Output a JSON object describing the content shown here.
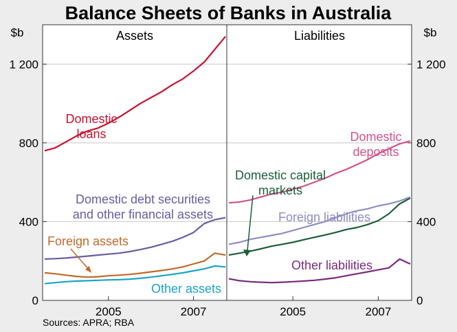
{
  "chart_data": {
    "type": "line",
    "title": "Balance Sheets of Banks in Australia",
    "source": "Sources: APRA; RBA",
    "y_unit_left": "$b",
    "y_unit_right": "$b",
    "ylim": [
      0,
      1400
    ],
    "y_ticks": [
      0,
      400,
      800,
      1200
    ],
    "y_tick_labels": [
      "0",
      "400",
      "800",
      "1 200"
    ],
    "x_ticks": [
      2005,
      2007
    ],
    "x_tick_labels": [
      "2005",
      "2007"
    ],
    "xlim": [
      2003.5,
      2007.75
    ],
    "grid": true,
    "panels": [
      {
        "label": "Assets",
        "series": [
          {
            "name": "Domestic loans",
            "label_lines": [
              "Domestic",
              "loans"
            ],
            "color": "#c8102e",
            "x": [
              2003.5,
              2003.75,
              2004.0,
              2004.25,
              2004.5,
              2004.75,
              2005.0,
              2005.25,
              2005.5,
              2005.75,
              2006.0,
              2006.25,
              2006.5,
              2006.75,
              2007.0,
              2007.25,
              2007.5,
              2007.75
            ],
            "values": [
              760,
              775,
              805,
              835,
              860,
              875,
              900,
              930,
              965,
              1000,
              1030,
              1060,
              1095,
              1125,
              1165,
              1210,
              1275,
              1340
            ]
          },
          {
            "name": "Domestic debt securities and other financial assets",
            "label_lines": [
              "Domestic debt securities",
              "and other financial assets"
            ],
            "color": "#6a5ba3",
            "x": [
              2003.5,
              2003.75,
              2004.0,
              2004.25,
              2004.5,
              2004.75,
              2005.0,
              2005.25,
              2005.5,
              2005.75,
              2006.0,
              2006.25,
              2006.5,
              2006.75,
              2007.0,
              2007.25,
              2007.5,
              2007.75
            ],
            "values": [
              210,
              212,
              215,
              220,
              225,
              230,
              235,
              240,
              248,
              258,
              270,
              285,
              300,
              320,
              345,
              390,
              410,
              420
            ]
          },
          {
            "name": "Foreign assets",
            "label_lines": [
              "Foreign assets"
            ],
            "color": "#c0692a",
            "x": [
              2003.5,
              2003.75,
              2004.0,
              2004.25,
              2004.5,
              2004.75,
              2005.0,
              2005.25,
              2005.5,
              2005.75,
              2006.0,
              2006.25,
              2006.5,
              2006.75,
              2007.0,
              2007.25,
              2007.5,
              2007.75
            ],
            "values": [
              140,
              135,
              128,
              122,
              118,
              120,
              125,
              128,
              132,
              138,
              145,
              152,
              160,
              170,
              185,
              200,
              240,
              230
            ]
          },
          {
            "name": "Other assets",
            "label_lines": [
              "Other assets"
            ],
            "color": "#1aa3c8",
            "x": [
              2003.5,
              2003.75,
              2004.0,
              2004.25,
              2004.5,
              2004.75,
              2005.0,
              2005.25,
              2005.5,
              2005.75,
              2006.0,
              2006.25,
              2006.5,
              2006.75,
              2007.0,
              2007.25,
              2007.5,
              2007.75
            ],
            "values": [
              85,
              90,
              95,
              98,
              100,
              102,
              104,
              105,
              108,
              112,
              118,
              125,
              132,
              140,
              150,
              160,
              175,
              170
            ]
          }
        ]
      },
      {
        "label": "Liabilities",
        "series": [
          {
            "name": "Domestic deposits",
            "label_lines": [
              "Domestic",
              "deposits"
            ],
            "color": "#d6508a",
            "x": [
              2003.5,
              2003.75,
              2004.0,
              2004.25,
              2004.5,
              2004.75,
              2005.0,
              2005.25,
              2005.5,
              2005.75,
              2006.0,
              2006.25,
              2006.5,
              2006.75,
              2007.0,
              2007.25,
              2007.5,
              2007.75
            ],
            "values": [
              495,
              500,
              510,
              525,
              540,
              550,
              565,
              580,
              600,
              620,
              645,
              665,
              690,
              715,
              745,
              770,
              795,
              810
            ]
          },
          {
            "name": "Domestic capital markets",
            "label_lines": [
              "Domestic capital",
              "markets"
            ],
            "color": "#1b5e38",
            "x": [
              2003.5,
              2003.75,
              2004.0,
              2004.25,
              2004.5,
              2004.75,
              2005.0,
              2005.25,
              2005.5,
              2005.75,
              2006.0,
              2006.25,
              2006.5,
              2006.75,
              2007.0,
              2007.25,
              2007.5,
              2007.75
            ],
            "values": [
              230,
              240,
              250,
              262,
              275,
              285,
              295,
              308,
              320,
              332,
              345,
              360,
              370,
              385,
              405,
              440,
              490,
              520
            ]
          },
          {
            "name": "Foreign liabilities",
            "label_lines": [
              "Foreign liabilities"
            ],
            "color": "#8e8dc3",
            "x": [
              2003.5,
              2003.75,
              2004.0,
              2004.25,
              2004.5,
              2004.75,
              2005.0,
              2005.25,
              2005.5,
              2005.75,
              2006.0,
              2006.25,
              2006.5,
              2006.75,
              2007.0,
              2007.25,
              2007.5,
              2007.75
            ],
            "values": [
              285,
              295,
              310,
              320,
              330,
              340,
              355,
              370,
              385,
              400,
              420,
              440,
              455,
              465,
              480,
              490,
              505,
              525
            ]
          },
          {
            "name": "Other liabilities",
            "label_lines": [
              "Other liabilities"
            ],
            "color": "#7a2a7d",
            "x": [
              2003.5,
              2003.75,
              2004.0,
              2004.25,
              2004.5,
              2004.75,
              2005.0,
              2005.25,
              2005.5,
              2005.75,
              2006.0,
              2006.25,
              2006.5,
              2006.75,
              2007.0,
              2007.25,
              2007.5,
              2007.75
            ],
            "values": [
              110,
              100,
              95,
              92,
              90,
              92,
              95,
              98,
              102,
              108,
              115,
              125,
              135,
              145,
              155,
              165,
              210,
              185
            ]
          }
        ]
      }
    ]
  }
}
